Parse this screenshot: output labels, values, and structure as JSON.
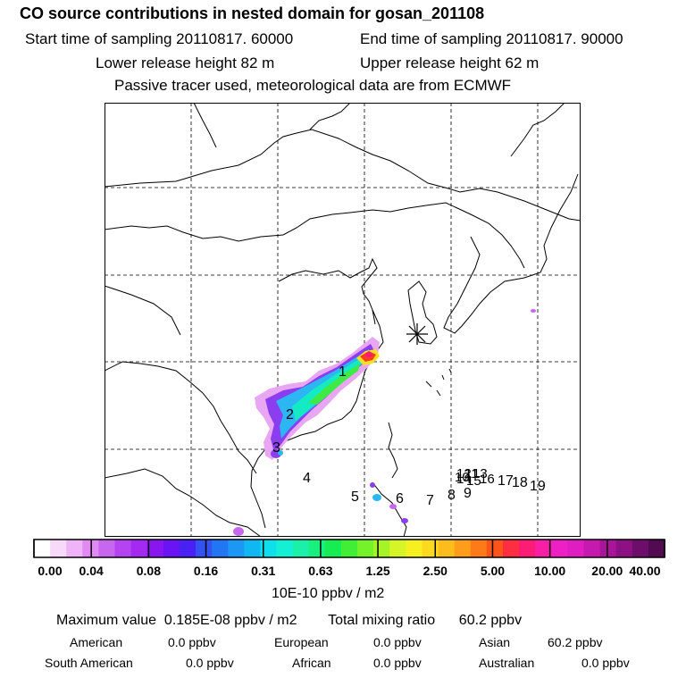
{
  "title": "CO  source contributions in nested domain for gosan_201108",
  "sampling": {
    "start": "Start time of sampling 20110817. 60000",
    "end": "End time of sampling 20110817. 90000"
  },
  "release": {
    "lower": "Lower release height   82 m",
    "upper": "Upper release height   62 m"
  },
  "note": "Passive tracer used, meteorological data are from ECMWF",
  "map": {
    "source_labels": [
      "1",
      "2",
      "3",
      "4",
      "5",
      "6",
      "7",
      "8",
      "9",
      "10",
      "11",
      "12",
      "13",
      "14",
      "15",
      "16",
      "17",
      "18",
      "19"
    ],
    "receptor": "gosan"
  },
  "colorbar": {
    "ticks": [
      "0.00",
      "0.04",
      "0.08",
      "0.16",
      "0.31",
      "0.63",
      "1.25",
      "2.50",
      "5.00",
      "10.00",
      "20.00",
      "40.00"
    ],
    "colors": [
      "#ffffff",
      "#f7d9fa",
      "#efb4f7",
      "#e18af3",
      "#c766ef",
      "#b444f1",
      "#a42af1",
      "#8a16ef",
      "#6a13f5",
      "#4a21f5",
      "#3451f2",
      "#2275f3",
      "#1d97f4",
      "#0fb8f2",
      "#0de0ec",
      "#13f0d4",
      "#1af0aa",
      "#17ef7e",
      "#15ed53",
      "#40ef35",
      "#74f32a",
      "#a6f428",
      "#d6f526",
      "#f6f021",
      "#fbd91e",
      "#fcbc1c",
      "#fd9d1a",
      "#fd7a19",
      "#fd5417",
      "#fd2e42",
      "#fc1c75",
      "#f81ea6",
      "#ee1fc5",
      "#df1dc0",
      "#c619b0",
      "#a8159b",
      "#8c1283",
      "#6e0e6b",
      "#520a50"
    ],
    "units": "10E-10 ppbv / m2"
  },
  "summary": {
    "max_label": "Maximum value",
    "max_value": "0.185E-08 ppbv / m2",
    "total_label": "Total mixing ratio",
    "total_value": "60.2 ppbv"
  },
  "regions": [
    {
      "name": "American",
      "value": "0.0 ppbv"
    },
    {
      "name": "European",
      "value": "0.0 ppbv"
    },
    {
      "name": "Asian",
      "value": "60.2 ppbv"
    },
    {
      "name": "South American",
      "value": "0.0 ppbv"
    },
    {
      "name": "African",
      "value": "0.0 ppbv"
    },
    {
      "name": "Australian",
      "value": "0.0 ppbv"
    }
  ]
}
